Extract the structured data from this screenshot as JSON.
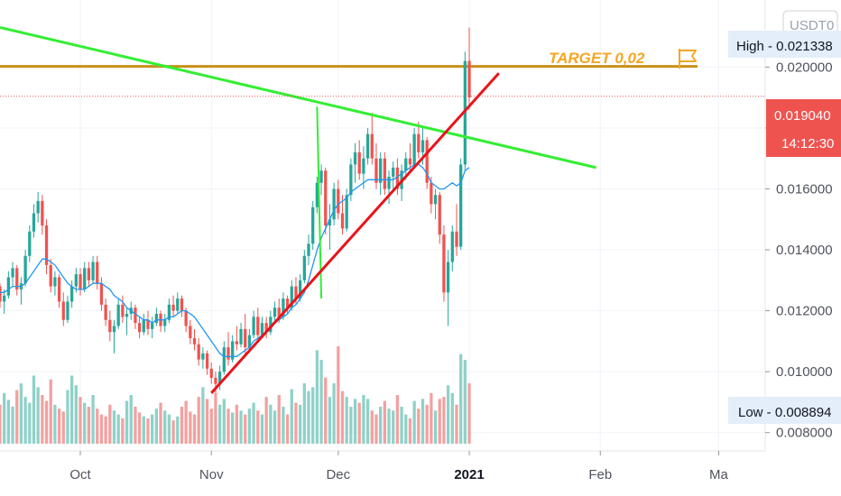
{
  "header": {
    "currency_label": "USDT",
    "currency_suffix": "0"
  },
  "badges": {
    "high": "High - 0.021338",
    "low": "Low - 0.008894",
    "last_price": "0.019040",
    "countdown": "14:12:30"
  },
  "annotation": {
    "target_text": "TARGET 0,02",
    "flag_icon": "flag-icon"
  },
  "colors": {
    "up": "#26a69a",
    "down": "#ef5350",
    "up_volume": "#8fd1c8",
    "down_volume": "#f2a1a0",
    "ma": "#2196f3",
    "trend_green": "#33ee33",
    "trend_red": "#e8141a",
    "target_line": "#c8901a",
    "price_badge": "#ef5350",
    "info_badge_bg": "#e3eefa"
  },
  "chart_data": {
    "type": "candlestick",
    "y_axis": {
      "ticks": [
        "0.020000",
        "0.018000",
        "0.016000",
        "0.014000",
        "0.012000",
        "0.010000",
        "0.008000"
      ],
      "tick_values": [
        0.02,
        0.018,
        0.016,
        0.014,
        0.012,
        0.01,
        0.008
      ],
      "range": [
        0.0074,
        0.0222
      ]
    },
    "x_axis": {
      "labels": [
        "Oct",
        "Nov",
        "Dec",
        "2021",
        "Feb",
        "Ma"
      ],
      "label_dates": [
        "2020-10-01",
        "2020-11-01",
        "2020-12-01",
        "2021-01-01",
        "2021-02-01",
        "2021-03-01"
      ],
      "range": [
        "2020-09-12",
        "2021-03-12"
      ]
    },
    "price_start": "2020-09-12",
    "candles": [
      [
        0.0128,
        0.0129,
        0.0121,
        0.0123
      ],
      [
        0.0123,
        0.0127,
        0.0119,
        0.0125
      ],
      [
        0.0125,
        0.0133,
        0.0124,
        0.0131
      ],
      [
        0.0131,
        0.0136,
        0.0128,
        0.0134
      ],
      [
        0.0134,
        0.0135,
        0.0125,
        0.0127
      ],
      [
        0.0127,
        0.0131,
        0.0122,
        0.0129
      ],
      [
        0.0129,
        0.014,
        0.0128,
        0.0138
      ],
      [
        0.0138,
        0.0148,
        0.0136,
        0.0146
      ],
      [
        0.0146,
        0.0155,
        0.0144,
        0.0152
      ],
      [
        0.0152,
        0.0159,
        0.0149,
        0.0156
      ],
      [
        0.0156,
        0.0158,
        0.0145,
        0.0148
      ],
      [
        0.0148,
        0.015,
        0.0132,
        0.0135
      ],
      [
        0.0135,
        0.0137,
        0.0126,
        0.0128
      ],
      [
        0.0128,
        0.0133,
        0.0125,
        0.0131
      ],
      [
        0.0131,
        0.0132,
        0.0121,
        0.0123
      ],
      [
        0.0123,
        0.0126,
        0.0115,
        0.0117
      ],
      [
        0.0117,
        0.0125,
        0.0116,
        0.0123
      ],
      [
        0.0123,
        0.013,
        0.0121,
        0.0128
      ],
      [
        0.0128,
        0.0134,
        0.0126,
        0.0132
      ],
      [
        0.0132,
        0.0134,
        0.0125,
        0.0127
      ],
      [
        0.0127,
        0.0136,
        0.0126,
        0.0134
      ],
      [
        0.0134,
        0.0136,
        0.0128,
        0.013
      ],
      [
        0.013,
        0.0138,
        0.0129,
        0.0136
      ],
      [
        0.0136,
        0.0138,
        0.0127,
        0.0129
      ],
      [
        0.0129,
        0.0131,
        0.012,
        0.0122
      ],
      [
        0.0122,
        0.0124,
        0.0115,
        0.0117
      ],
      [
        0.0117,
        0.012,
        0.011,
        0.0113
      ],
      [
        0.0113,
        0.0117,
        0.0106,
        0.0115
      ],
      [
        0.0115,
        0.0124,
        0.0114,
        0.0122
      ],
      [
        0.0122,
        0.0125,
        0.0116,
        0.0118
      ],
      [
        0.0118,
        0.0121,
        0.0112,
        0.0119
      ],
      [
        0.0119,
        0.0123,
        0.0117,
        0.0121
      ],
      [
        0.0121,
        0.0122,
        0.0114,
        0.0116
      ],
      [
        0.0116,
        0.0118,
        0.0111,
        0.0113
      ],
      [
        0.0113,
        0.0119,
        0.0112,
        0.0117
      ],
      [
        0.0117,
        0.012,
        0.0112,
        0.0114
      ],
      [
        0.0114,
        0.0118,
        0.0111,
        0.0116
      ],
      [
        0.0116,
        0.0121,
        0.0115,
        0.0119
      ],
      [
        0.0119,
        0.012,
        0.0113,
        0.0115
      ],
      [
        0.0115,
        0.0119,
        0.0113,
        0.0117
      ],
      [
        0.0117,
        0.0124,
        0.0116,
        0.0122
      ],
      [
        0.0122,
        0.0125,
        0.0118,
        0.012
      ],
      [
        0.012,
        0.0126,
        0.0119,
        0.0124
      ],
      [
        0.0124,
        0.0125,
        0.0118,
        0.012
      ],
      [
        0.012,
        0.0121,
        0.0113,
        0.0115
      ],
      [
        0.0115,
        0.0117,
        0.0109,
        0.0111
      ],
      [
        0.0111,
        0.0114,
        0.0107,
        0.0109
      ],
      [
        0.0109,
        0.0111,
        0.0102,
        0.0104
      ],
      [
        0.0104,
        0.0108,
        0.0101,
        0.0106
      ],
      [
        0.0106,
        0.0107,
        0.0099,
        0.0101
      ],
      [
        0.0101,
        0.0103,
        0.0096,
        0.0098
      ],
      [
        0.0098,
        0.01,
        0.0093,
        0.0096
      ],
      [
        0.0096,
        0.0102,
        0.0094,
        0.01
      ],
      [
        0.01,
        0.011,
        0.0099,
        0.0108
      ],
      [
        0.0108,
        0.0113,
        0.0102,
        0.0104
      ],
      [
        0.0104,
        0.0112,
        0.0103,
        0.011
      ],
      [
        0.011,
        0.0115,
        0.0107,
        0.0109
      ],
      [
        0.0109,
        0.0116,
        0.0108,
        0.0114
      ],
      [
        0.0114,
        0.0119,
        0.0106,
        0.0108
      ],
      [
        0.0108,
        0.0114,
        0.0107,
        0.0112
      ],
      [
        0.0112,
        0.012,
        0.0111,
        0.0118
      ],
      [
        0.0118,
        0.0121,
        0.011,
        0.0112
      ],
      [
        0.0112,
        0.0118,
        0.0111,
        0.0116
      ],
      [
        0.0116,
        0.0118,
        0.0111,
        0.0113
      ],
      [
        0.0113,
        0.012,
        0.0112,
        0.0118
      ],
      [
        0.0118,
        0.0123,
        0.0116,
        0.0121
      ],
      [
        0.0121,
        0.0124,
        0.0116,
        0.0118
      ],
      [
        0.0118,
        0.0126,
        0.0117,
        0.0124
      ],
      [
        0.0124,
        0.0125,
        0.0119,
        0.0121
      ],
      [
        0.0121,
        0.013,
        0.012,
        0.0128
      ],
      [
        0.0128,
        0.0131,
        0.0122,
        0.0124
      ],
      [
        0.0124,
        0.0132,
        0.0123,
        0.013
      ],
      [
        0.013,
        0.014,
        0.0129,
        0.0138
      ],
      [
        0.0138,
        0.0145,
        0.0135,
        0.0142
      ],
      [
        0.0142,
        0.0156,
        0.014,
        0.0154
      ],
      [
        0.0154,
        0.0164,
        0.0152,
        0.0162
      ],
      [
        0.0162,
        0.0168,
        0.0158,
        0.0166
      ],
      [
        0.0166,
        0.0167,
        0.0145,
        0.0148
      ],
      [
        0.0148,
        0.0155,
        0.014,
        0.015
      ],
      [
        0.015,
        0.0162,
        0.0148,
        0.016
      ],
      [
        0.016,
        0.0163,
        0.015,
        0.0152
      ],
      [
        0.0152,
        0.0158,
        0.0145,
        0.0147
      ],
      [
        0.0147,
        0.016,
        0.0146,
        0.0158
      ],
      [
        0.0158,
        0.017,
        0.0156,
        0.0168
      ],
      [
        0.0168,
        0.0175,
        0.0162,
        0.0172
      ],
      [
        0.0172,
        0.0176,
        0.0163,
        0.0165
      ],
      [
        0.0165,
        0.0174,
        0.016,
        0.017
      ],
      [
        0.017,
        0.018,
        0.0168,
        0.0178
      ],
      [
        0.0178,
        0.0185,
        0.0168,
        0.017
      ],
      [
        0.017,
        0.0175,
        0.016,
        0.0162
      ],
      [
        0.0162,
        0.0172,
        0.0158,
        0.017
      ],
      [
        0.017,
        0.0172,
        0.0158,
        0.016
      ],
      [
        0.016,
        0.0166,
        0.0155,
        0.0164
      ],
      [
        0.0164,
        0.0169,
        0.016,
        0.0167
      ],
      [
        0.0167,
        0.017,
        0.0158,
        0.016
      ],
      [
        0.016,
        0.0168,
        0.0156,
        0.0166
      ],
      [
        0.0166,
        0.0172,
        0.0163,
        0.017
      ],
      [
        0.017,
        0.0175,
        0.0166,
        0.0168
      ],
      [
        0.0168,
        0.018,
        0.0167,
        0.0178
      ],
      [
        0.0178,
        0.0182,
        0.017,
        0.0172
      ],
      [
        0.0172,
        0.018,
        0.0168,
        0.0176
      ],
      [
        0.0176,
        0.0177,
        0.016,
        0.0162
      ],
      [
        0.0162,
        0.0164,
        0.0152,
        0.0155
      ],
      [
        0.0155,
        0.016,
        0.015,
        0.0158
      ],
      [
        0.0158,
        0.0159,
        0.0142,
        0.0145
      ],
      [
        0.0145,
        0.0148,
        0.0123,
        0.0126
      ],
      [
        0.0126,
        0.014,
        0.0115,
        0.0136
      ],
      [
        0.0136,
        0.0148,
        0.0133,
        0.0146
      ],
      [
        0.0146,
        0.0155,
        0.0138,
        0.0141
      ],
      [
        0.0141,
        0.017,
        0.014,
        0.0168
      ],
      [
        0.0168,
        0.0205,
        0.0166,
        0.0202
      ],
      [
        0.0202,
        0.0213,
        0.0186,
        0.019
      ]
    ],
    "volume": [
      0.4,
      0.52,
      0.45,
      0.38,
      0.55,
      0.62,
      0.48,
      0.42,
      0.7,
      0.58,
      0.5,
      0.44,
      0.66,
      0.4,
      0.36,
      0.33,
      0.55,
      0.7,
      0.6,
      0.48,
      0.42,
      0.38,
      0.5,
      0.36,
      0.3,
      0.28,
      0.4,
      0.34,
      0.3,
      0.26,
      0.44,
      0.5,
      0.38,
      0.32,
      0.28,
      0.26,
      0.3,
      0.36,
      0.42,
      0.34,
      0.3,
      0.24,
      0.28,
      0.38,
      0.44,
      0.33,
      0.3,
      0.48,
      0.58,
      0.46,
      0.36,
      0.52,
      0.4,
      0.46,
      0.36,
      0.32,
      0.4,
      0.34,
      0.3,
      0.36,
      0.42,
      0.34,
      0.3,
      0.48,
      0.4,
      0.34,
      0.5,
      0.38,
      0.3,
      0.56,
      0.42,
      0.4,
      0.62,
      0.54,
      0.58,
      0.96,
      0.86,
      0.68,
      0.48,
      0.62,
      1.0,
      0.54,
      0.48,
      0.38,
      0.46,
      0.42,
      0.5,
      0.46,
      0.34,
      0.3,
      0.38,
      0.44,
      0.36,
      0.34,
      0.5,
      0.38,
      0.3,
      0.26,
      0.44,
      0.36,
      0.46,
      0.4,
      0.52,
      0.34,
      0.46,
      0.48,
      0.6,
      0.52,
      0.4,
      0.92,
      0.86,
      0.62
    ],
    "volume_scale_max": 1.0,
    "moving_average": [
      0.0126,
      0.0126,
      0.0127,
      0.0128,
      0.0128,
      0.0128,
      0.0129,
      0.0131,
      0.0133,
      0.0135,
      0.0137,
      0.0137,
      0.0136,
      0.0135,
      0.0133,
      0.0131,
      0.0129,
      0.0128,
      0.0127,
      0.0127,
      0.0127,
      0.0128,
      0.0129,
      0.0129,
      0.0129,
      0.0128,
      0.0127,
      0.0125,
      0.0124,
      0.0123,
      0.0121,
      0.012,
      0.0119,
      0.0118,
      0.0117,
      0.0117,
      0.0116,
      0.0117,
      0.0117,
      0.0117,
      0.0118,
      0.0118,
      0.0119,
      0.012,
      0.012,
      0.0119,
      0.0118,
      0.0116,
      0.0114,
      0.0112,
      0.011,
      0.0108,
      0.0106,
      0.0105,
      0.0105,
      0.0105,
      0.0105,
      0.0106,
      0.0107,
      0.0108,
      0.011,
      0.0111,
      0.0112,
      0.0113,
      0.0114,
      0.0116,
      0.0117,
      0.0118,
      0.0119,
      0.0121,
      0.0122,
      0.0124,
      0.0126,
      0.013,
      0.0135,
      0.014,
      0.0144,
      0.0147,
      0.015,
      0.0153,
      0.0155,
      0.0156,
      0.0157,
      0.0159,
      0.016,
      0.0161,
      0.0162,
      0.0163,
      0.0163,
      0.0163,
      0.0163,
      0.0163,
      0.0163,
      0.0163,
      0.0164,
      0.0165,
      0.0166,
      0.0167,
      0.0168,
      0.0168,
      0.0167,
      0.0165,
      0.0162,
      0.0161,
      0.016,
      0.016,
      0.0161,
      0.0162,
      0.0161,
      0.0162,
      0.0166,
      0.0167
    ],
    "last_price": 0.01904,
    "high_price": 0.021338,
    "low_price": 0.008894,
    "drawings": {
      "target_line": {
        "y": 0.02002,
        "x_start": "2020-09-12",
        "x_end": "2021-02-24"
      },
      "green_trendline": {
        "start": [
          "2020-09-12",
          0.0213
        ],
        "end": [
          "2021-01-31",
          0.0167
        ]
      },
      "red_trendline": {
        "start": [
          "2020-11-01",
          0.0093
        ],
        "end": [
          "2021-01-08",
          0.0198
        ]
      },
      "green_vertical": {
        "top": [
          "2020-11-26",
          0.0187
        ],
        "bottom": [
          "2020-11-27",
          0.0124
        ]
      }
    }
  }
}
